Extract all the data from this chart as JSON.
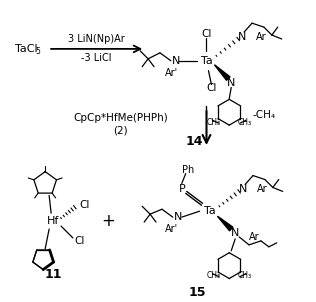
{
  "bg_color": "#ffffff",
  "fig_width": 3.16,
  "fig_height": 3.02,
  "dpi": 100,
  "top": {
    "reactant": "TaCl",
    "reactant_sub": "5",
    "reagent1": "3 LiN(Np)Ar",
    "reagent2": "-3 LiCl",
    "product_label": "14"
  },
  "middle": {
    "reagent1": "CpCp*HfMe(PHPh)",
    "reagent2": "(2)",
    "byproduct": "-CH₄"
  },
  "bottom": {
    "label11": "11",
    "plus": "+",
    "label15": "15"
  }
}
